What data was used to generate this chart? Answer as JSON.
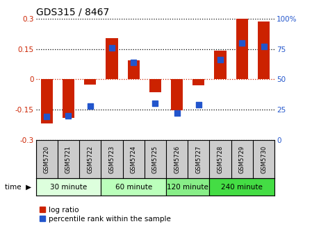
{
  "title": "GDS315 / 8467",
  "samples": [
    "GSM5720",
    "GSM5721",
    "GSM5722",
    "GSM5723",
    "GSM5724",
    "GSM5725",
    "GSM5726",
    "GSM5727",
    "GSM5728",
    "GSM5729",
    "GSM5730"
  ],
  "log_ratios": [
    -0.22,
    -0.19,
    -0.025,
    0.205,
    0.095,
    -0.065,
    -0.155,
    -0.03,
    0.14,
    0.302,
    0.285
  ],
  "percentile_ranks": [
    19,
    20,
    28,
    76,
    64,
    30,
    22,
    29,
    66,
    80,
    77
  ],
  "time_groups": [
    {
      "label": "30 minute",
      "start": 0,
      "end": 3,
      "color": "#ddffdd"
    },
    {
      "label": "60 minute",
      "start": 3,
      "end": 6,
      "color": "#bbffbb"
    },
    {
      "label": "120 minute",
      "start": 6,
      "end": 8,
      "color": "#88ee88"
    },
    {
      "label": "240 minute",
      "start": 8,
      "end": 11,
      "color": "#44dd44"
    }
  ],
  "ylim": [
    -0.3,
    0.3
  ],
  "yticks_left": [
    -0.3,
    -0.15,
    0,
    0.15,
    0.3
  ],
  "yticks_right": [
    0,
    25,
    50,
    75,
    100
  ],
  "bar_color": "#cc2200",
  "dot_color": "#2255cc",
  "bar_width": 0.55,
  "dot_size": 28,
  "legend_labels": [
    "log ratio",
    "percentile rank within the sample"
  ],
  "time_label": "time",
  "figsize": [
    4.49,
    3.36
  ],
  "dpi": 100
}
